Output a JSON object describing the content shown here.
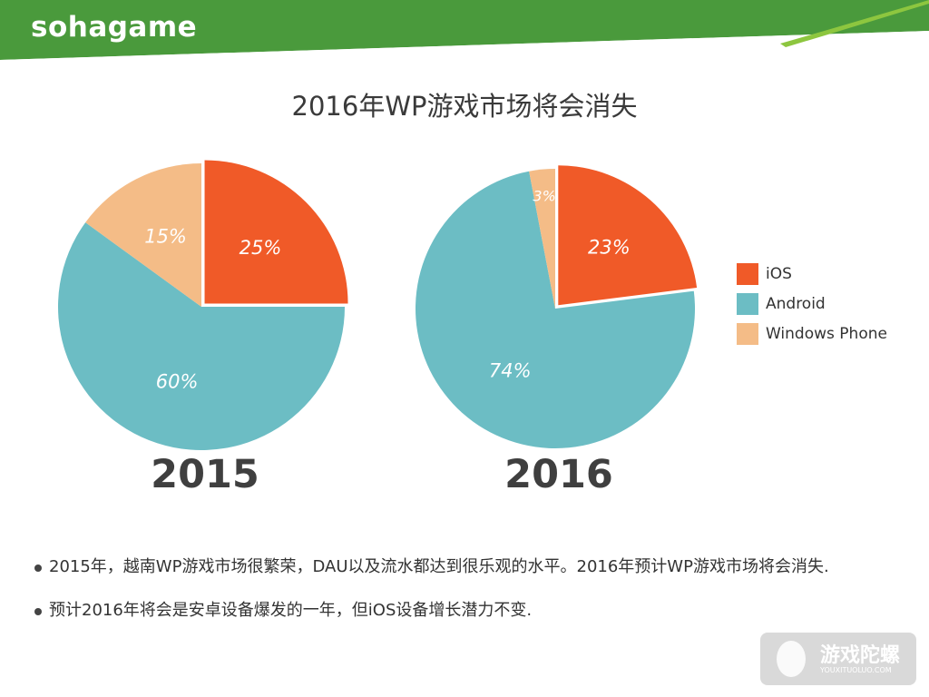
{
  "header": {
    "logo_text": "sohagame"
  },
  "title": "2016年WP游戏市场将会消失",
  "colors": {
    "ios": "#f05a28",
    "android": "#6cbdc4",
    "windows_phone": "#f4bc87",
    "banner_dark": "#4a9a3c",
    "banner_light": "#8dc63f"
  },
  "chart_data": [
    {
      "type": "pie",
      "label": "2015",
      "categories": [
        "iOS",
        "Android",
        "Windows Phone"
      ],
      "values": [
        25,
        60,
        15
      ],
      "data_labels": [
        "25%",
        "60%",
        "15%"
      ],
      "exploded": "iOS"
    },
    {
      "type": "pie",
      "label": "2016",
      "categories": [
        "iOS",
        "Android",
        "Windows Phone"
      ],
      "values": [
        23,
        74,
        3
      ],
      "data_labels": [
        "23%",
        "74%",
        "3%"
      ],
      "exploded": "iOS"
    }
  ],
  "legend": {
    "placement": "right",
    "items": [
      {
        "label": "iOS",
        "color": "#f05a28"
      },
      {
        "label": "Android",
        "color": "#6cbdc4"
      },
      {
        "label": "Windows Phone",
        "color": "#f4bc87"
      }
    ]
  },
  "bullets": [
    "2015年，越南WP游戏市场很繁荣，DAU以及流水都达到很乐观的水平。2016年预计WP游戏市场将会消失.",
    "预计2016年将会是安卓设备爆发的一年，但iOS设备增长潜力不变."
  ],
  "watermark": {
    "text": "游戏陀螺",
    "subtext": "YOUXITUOLUO.COM"
  }
}
